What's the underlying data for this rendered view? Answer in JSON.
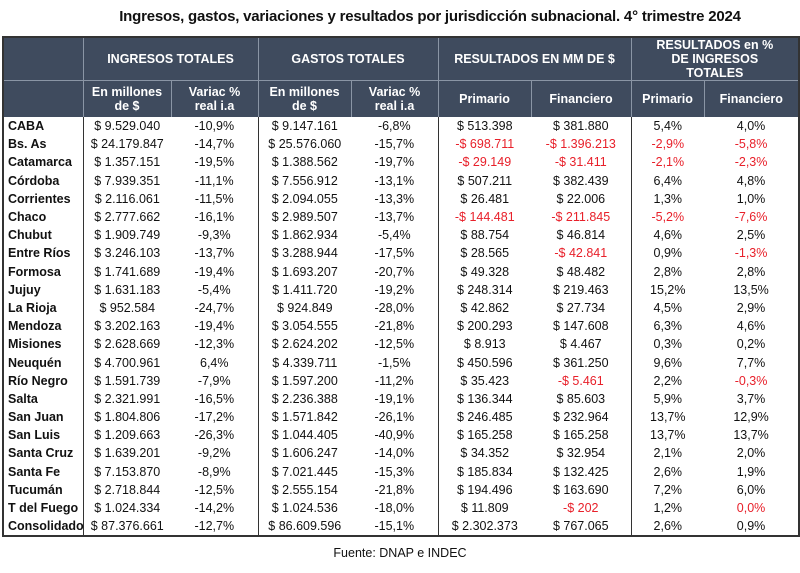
{
  "title": "Ingresos, gastos, variaciones y resultados por jurisdicción subnacional. 4° trimestre 2024",
  "header": {
    "groups": [
      "INGRESOS TOTALES",
      "GASTOS TOTALES",
      "RESULTADOS EN MM DE $",
      "RESULTADOS en % DE INGRESOS TOTALES"
    ],
    "sub": [
      "En millones de $",
      "Variac % real i.a",
      "En millones de $",
      "Variac % real i.a",
      "Primario",
      "Financiero",
      "Primario",
      "Financiero"
    ]
  },
  "colors": {
    "header_bg": "#3f4b5e",
    "negative": "#e8202a"
  },
  "rows": [
    {
      "name": "CABA",
      "v": [
        "$ 9.529.040",
        "-10,9%",
        "$ 9.147.161",
        "-6,8%",
        "$ 513.398",
        "$ 381.880",
        "5,4%",
        "4,0%"
      ],
      "red": []
    },
    {
      "name": "Bs. As",
      "v": [
        "$ 24.179.847",
        "-14,7%",
        "$ 25.576.060",
        "-15,7%",
        "-$ 698.711",
        "-$ 1.396.213",
        "-2,9%",
        "-5,8%"
      ],
      "red": [
        4,
        5,
        6,
        7
      ]
    },
    {
      "name": "Catamarca",
      "v": [
        "$ 1.357.151",
        "-19,5%",
        "$ 1.388.562",
        "-19,7%",
        "-$ 29.149",
        "-$ 31.411",
        "-2,1%",
        "-2,3%"
      ],
      "red": [
        4,
        5,
        6,
        7
      ]
    },
    {
      "name": "Córdoba",
      "v": [
        "$ 7.939.351",
        "-11,1%",
        "$ 7.556.912",
        "-13,1%",
        "$ 507.211",
        "$ 382.439",
        "6,4%",
        "4,8%"
      ],
      "red": []
    },
    {
      "name": "Corrientes",
      "v": [
        "$ 2.116.061",
        "-11,5%",
        "$ 2.094.055",
        "-13,3%",
        "$ 26.481",
        "$ 22.006",
        "1,3%",
        "1,0%"
      ],
      "red": []
    },
    {
      "name": "Chaco",
      "v": [
        "$ 2.777.662",
        "-16,1%",
        "$ 2.989.507",
        "-13,7%",
        "-$ 144.481",
        "-$ 211.845",
        "-5,2%",
        "-7,6%"
      ],
      "red": [
        4,
        5,
        6,
        7
      ]
    },
    {
      "name": "Chubut",
      "v": [
        "$ 1.909.749",
        "-9,3%",
        "$ 1.862.934",
        "-5,4%",
        "$ 88.754",
        "$ 46.814",
        "4,6%",
        "2,5%"
      ],
      "red": []
    },
    {
      "name": "Entre Ríos",
      "v": [
        "$ 3.246.103",
        "-13,7%",
        "$ 3.288.944",
        "-17,5%",
        "$ 28.565",
        "-$ 42.841",
        "0,9%",
        "-1,3%"
      ],
      "red": [
        5,
        7
      ]
    },
    {
      "name": "Formosa",
      "v": [
        "$ 1.741.689",
        "-19,4%",
        "$ 1.693.207",
        "-20,7%",
        "$ 49.328",
        "$ 48.482",
        "2,8%",
        "2,8%"
      ],
      "red": []
    },
    {
      "name": "Jujuy",
      "v": [
        "$ 1.631.183",
        "-5,4%",
        "$ 1.411.720",
        "-19,2%",
        "$ 248.314",
        "$ 219.463",
        "15,2%",
        "13,5%"
      ],
      "red": []
    },
    {
      "name": "La Rioja",
      "v": [
        "$ 952.584",
        "-24,7%",
        "$ 924.849",
        "-28,0%",
        "$ 42.862",
        "$ 27.734",
        "4,5%",
        "2,9%"
      ],
      "red": []
    },
    {
      "name": "Mendoza",
      "v": [
        "$ 3.202.163",
        "-19,4%",
        "$ 3.054.555",
        "-21,8%",
        "$ 200.293",
        "$ 147.608",
        "6,3%",
        "4,6%"
      ],
      "red": []
    },
    {
      "name": "Misiones",
      "v": [
        "$ 2.628.669",
        "-12,3%",
        "$ 2.624.202",
        "-12,5%",
        "$ 8.913",
        "$ 4.467",
        "0,3%",
        "0,2%"
      ],
      "red": []
    },
    {
      "name": "Neuquén",
      "v": [
        "$ 4.700.961",
        "6,4%",
        "$ 4.339.711",
        "-1,5%",
        "$ 450.596",
        "$ 361.250",
        "9,6%",
        "7,7%"
      ],
      "red": []
    },
    {
      "name": "Río Negro",
      "v": [
        "$ 1.591.739",
        "-7,9%",
        "$ 1.597.200",
        "-11,2%",
        "$ 35.423",
        "-$ 5.461",
        "2,2%",
        "-0,3%"
      ],
      "red": [
        5,
        7
      ]
    },
    {
      "name": "Salta",
      "v": [
        "$ 2.321.991",
        "-16,5%",
        "$ 2.236.388",
        "-19,1%",
        "$ 136.344",
        "$ 85.603",
        "5,9%",
        "3,7%"
      ],
      "red": []
    },
    {
      "name": "San Juan",
      "v": [
        "$ 1.804.806",
        "-17,2%",
        "$ 1.571.842",
        "-26,1%",
        "$ 246.485",
        "$ 232.964",
        "13,7%",
        "12,9%"
      ],
      "red": []
    },
    {
      "name": "San Luis",
      "v": [
        "$ 1.209.663",
        "-26,3%",
        "$ 1.044.405",
        "-40,9%",
        "$ 165.258",
        "$ 165.258",
        "13,7%",
        "13,7%"
      ],
      "red": []
    },
    {
      "name": "Santa Cruz",
      "v": [
        "$ 1.639.201",
        "-9,2%",
        "$ 1.606.247",
        "-14,0%",
        "$ 34.352",
        "$ 32.954",
        "2,1%",
        "2,0%"
      ],
      "red": []
    },
    {
      "name": "Santa Fe",
      "v": [
        "$ 7.153.870",
        "-8,9%",
        "$ 7.021.445",
        "-15,3%",
        "$ 185.834",
        "$ 132.425",
        "2,6%",
        "1,9%"
      ],
      "red": []
    },
    {
      "name": "Tucumán",
      "v": [
        "$ 2.718.844",
        "-12,5%",
        "$ 2.555.154",
        "-21,8%",
        "$ 194.496",
        "$ 163.690",
        "7,2%",
        "6,0%"
      ],
      "red": []
    },
    {
      "name": "T del Fuego",
      "v": [
        "$ 1.024.334",
        "-14,2%",
        "$ 1.024.536",
        "-18,0%",
        "$ 11.809",
        "-$ 202",
        "1,2%",
        "0,0%"
      ],
      "red": [
        5,
        7
      ]
    },
    {
      "name": "Consolidado",
      "v": [
        "$ 87.376.661",
        "-12,7%",
        "$ 86.609.596",
        "-15,1%",
        "$ 2.302.373",
        "$ 767.065",
        "2,6%",
        "0,9%"
      ],
      "red": []
    }
  ],
  "source": "Fuente: DNAP e INDEC"
}
